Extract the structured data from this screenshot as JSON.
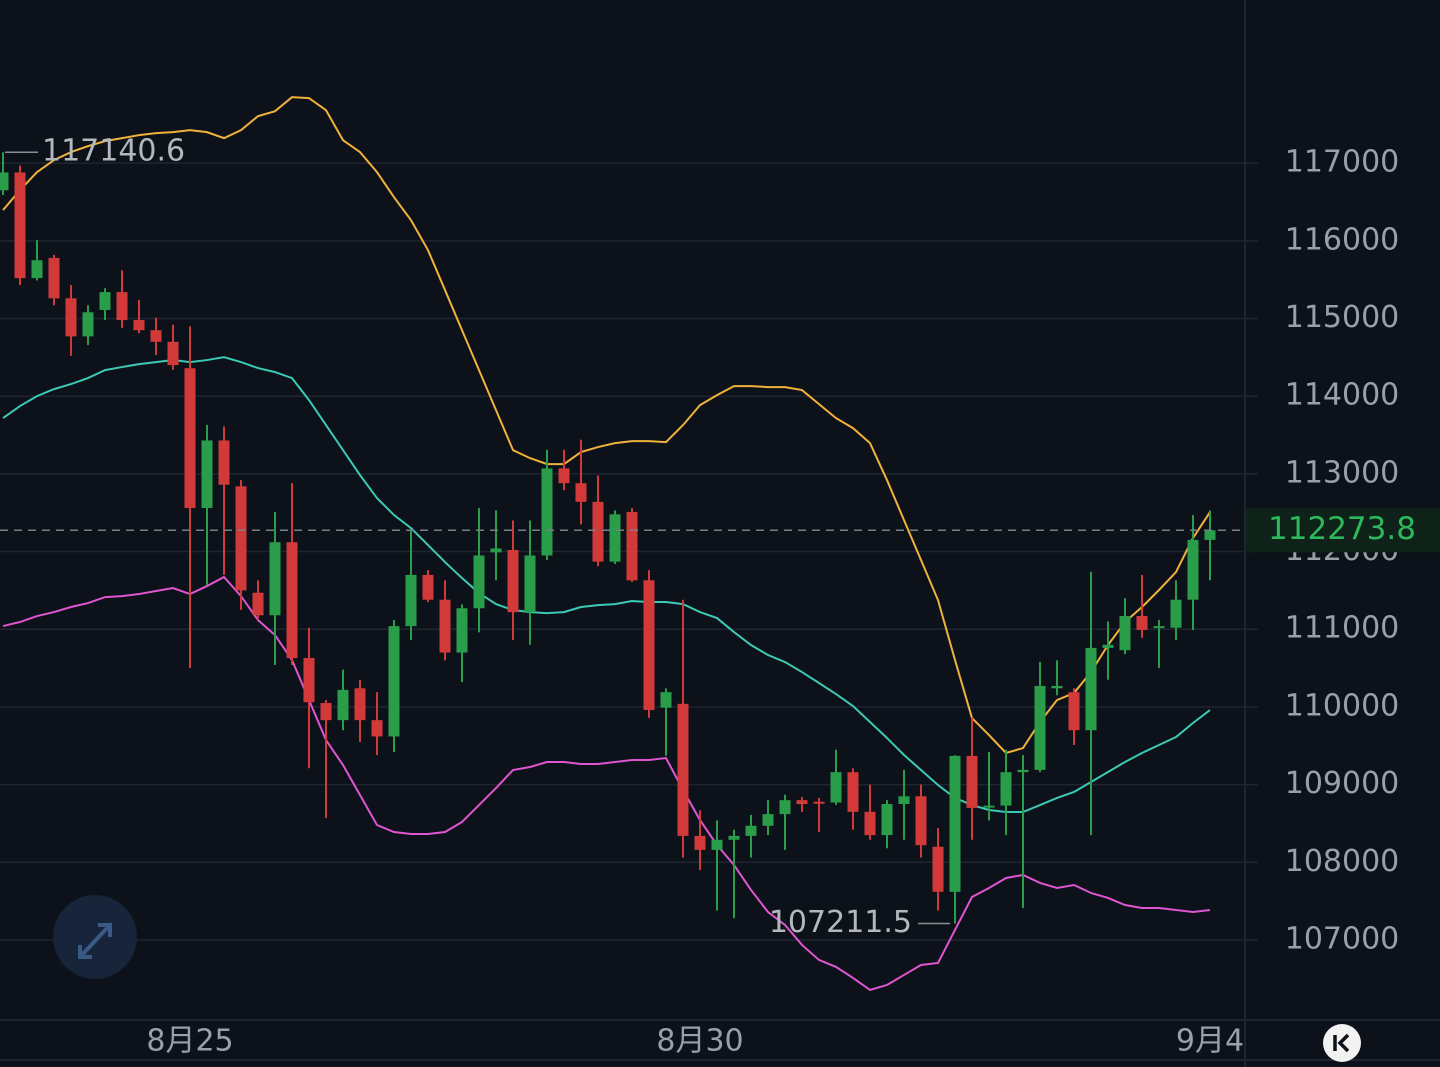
{
  "chart_data": {
    "type": "candlestick",
    "categories": [
      null,
      null,
      null,
      null,
      null,
      null,
      null,
      null,
      null,
      null,
      null,
      "8月25",
      null,
      null,
      null,
      null,
      null,
      null,
      null,
      null,
      null,
      null,
      null,
      null,
      null,
      null,
      null,
      null,
      null,
      null,
      null,
      null,
      null,
      null,
      null,
      null,
      null,
      null,
      null,
      null,
      null,
      "8月30",
      null,
      null,
      null,
      null,
      null,
      null,
      null,
      null,
      null,
      null,
      null,
      null,
      null,
      null,
      null,
      null,
      null,
      null,
      null,
      null,
      null,
      null,
      null,
      null,
      null,
      null,
      null,
      null,
      null,
      "9月4"
    ],
    "open": [
      116650,
      116880,
      115520,
      115780,
      115260,
      114770,
      115110,
      115340,
      114980,
      114850,
      114700,
      114360,
      112560,
      113430,
      112840,
      111470,
      111180,
      112120,
      110630,
      110050,
      109830,
      110240,
      109830,
      109620,
      111040,
      111700,
      111380,
      110700,
      111270,
      111990,
      112020,
      111220,
      111950,
      113070,
      112880,
      112640,
      111870,
      112510,
      111630,
      109990,
      110040,
      108340,
      108160,
      108290,
      108340,
      108470,
      108620,
      108800,
      108780,
      108770,
      109160,
      108650,
      108350,
      108750,
      108850,
      108200,
      107620,
      109370,
      108720,
      108730,
      109160,
      109190,
      110240,
      110190,
      109700,
      110760,
      110730,
      111170,
      111020,
      111020,
      111380,
      112150
    ],
    "high": [
      117140.6,
      116970,
      116010,
      115820,
      115430,
      115170,
      115390,
      115620,
      115240,
      115010,
      114920,
      114900,
      113630,
      113610,
      112920,
      111630,
      112510,
      112880,
      111020,
      110090,
      110480,
      110350,
      110190,
      111120,
      112280,
      111760,
      111630,
      111320,
      112560,
      112530,
      112400,
      112400,
      113310,
      113310,
      113440,
      112980,
      112530,
      112560,
      111760,
      110240,
      111380,
      108670,
      108540,
      108420,
      108610,
      108800,
      108870,
      108840,
      108830,
      109450,
      109210,
      109000,
      108800,
      109190,
      109000,
      108440,
      109380,
      109860,
      109420,
      109450,
      109380,
      110580,
      110600,
      110240,
      111740,
      111100,
      111400,
      111700,
      111120,
      111630,
      112470,
      112530
    ],
    "low": [
      116590,
      115430,
      115490,
      115170,
      114520,
      114660,
      114980,
      114880,
      114810,
      114530,
      114340,
      110500,
      111570,
      111700,
      111250,
      111120,
      110540,
      110540,
      109210,
      108570,
      109700,
      109550,
      109380,
      109420,
      110860,
      111350,
      110600,
      110320,
      110960,
      111630,
      110860,
      110800,
      111890,
      112790,
      112350,
      111810,
      111840,
      111610,
      109860,
      109370,
      108060,
      107900,
      107380,
      107280,
      108060,
      108350,
      108160,
      108650,
      108390,
      108740,
      108420,
      108290,
      108180,
      108290,
      108060,
      107380,
      107211.5,
      108290,
      108540,
      108350,
      107410,
      109160,
      110150,
      109510,
      108350,
      110350,
      110680,
      110890,
      110500,
      110860,
      110990,
      111630
    ],
    "close": [
      116880,
      115520,
      115750,
      115260,
      114770,
      115080,
      115340,
      114980,
      114850,
      114700,
      114400,
      112560,
      113430,
      112860,
      111500,
      111180,
      112120,
      110630,
      110060,
      109830,
      110220,
      109830,
      109620,
      111040,
      111700,
      111380,
      110700,
      111270,
      111950,
      112040,
      111220,
      111950,
      113070,
      112880,
      112640,
      111870,
      112480,
      111630,
      109960,
      110190,
      108340,
      108160,
      108290,
      108340,
      108470,
      108620,
      108800,
      108750,
      108770,
      109160,
      108650,
      108350,
      108750,
      108850,
      108220,
      107620,
      109370,
      108700,
      108730,
      109160,
      109190,
      110270,
      110270,
      109700,
      110760,
      110800,
      111170,
      110990,
      111040,
      111380,
      112150,
      112273.8
    ],
    "up_color": "#2a9d4a",
    "down_color": "#d23a3a",
    "bands": [
      {
        "color": "#f0b23a",
        "values": [
          116395,
          116653,
          116884,
          117039,
          117142,
          117219,
          117283,
          117322,
          117360,
          117386,
          117399,
          117425,
          117399,
          117322,
          117425,
          117605,
          117669,
          117849,
          117837,
          117682,
          117296,
          117142,
          116884,
          116562,
          116266,
          115880,
          115366,
          114851,
          114336,
          113821,
          113306,
          113203,
          113126,
          113126,
          113281,
          113345,
          113396,
          113422,
          113422,
          113409,
          113628,
          113885,
          114014,
          114130,
          114130,
          114117,
          114117,
          114079,
          113898,
          113718,
          113589,
          113396,
          112920,
          112405,
          111891,
          111376,
          110604,
          109857,
          109638,
          109407,
          109471,
          109806,
          110089,
          110179,
          110449,
          110797,
          111093,
          111286,
          111505,
          111736,
          112174,
          112508
        ]
      },
      {
        "color": "#3cc9b5",
        "values": [
          113718,
          113873,
          114001,
          114091,
          114156,
          114233,
          114336,
          114375,
          114413,
          114439,
          114465,
          114439,
          114465,
          114503,
          114439,
          114362,
          114310,
          114233,
          113950,
          113628,
          113306,
          112985,
          112689,
          112470,
          112302,
          112084,
          111865,
          111659,
          111466,
          111324,
          111247,
          111221,
          111208,
          111221,
          111286,
          111311,
          111324,
          111363,
          111350,
          111350,
          111324,
          111221,
          111144,
          110964,
          110797,
          110668,
          110578,
          110449,
          110308,
          110166,
          110012,
          109806,
          109600,
          109381,
          109188,
          108995,
          108828,
          108737,
          108673,
          108647,
          108647,
          108737,
          108828,
          108905,
          109034,
          109162,
          109291,
          109407,
          109510,
          109613,
          109793,
          109960
        ]
      },
      {
        "color": "#e055d0",
        "values": [
          111041,
          111093,
          111170,
          111221,
          111286,
          111337,
          111414,
          111427,
          111453,
          111492,
          111530,
          111453,
          111556,
          111672,
          111427,
          111118,
          110925,
          110604,
          110089,
          109574,
          109252,
          108866,
          108480,
          108390,
          108364,
          108364,
          108390,
          108519,
          108737,
          108956,
          109188,
          109227,
          109291,
          109291,
          109265,
          109265,
          109291,
          109317,
          109317,
          109342,
          108931,
          108544,
          108223,
          107965,
          107644,
          107360,
          107193,
          106936,
          106743,
          106653,
          106511,
          106357,
          106421,
          106550,
          106678,
          106704,
          107129,
          107553,
          107669,
          107798,
          107837,
          107734,
          107669,
          107708,
          107605,
          107541,
          107450,
          107412,
          107412,
          107386,
          107360,
          107386
        ]
      }
    ],
    "ylim": [
      105970,
      119100
    ],
    "yticks": [
      107000,
      108000,
      109000,
      110000,
      111000,
      112000,
      113000,
      114000,
      115000,
      116000,
      117000
    ],
    "grid": true,
    "max_label": 117140.6,
    "min_label": 107211.5,
    "last_price": 112273.8,
    "last_price_color": "#2eb85c"
  }
}
